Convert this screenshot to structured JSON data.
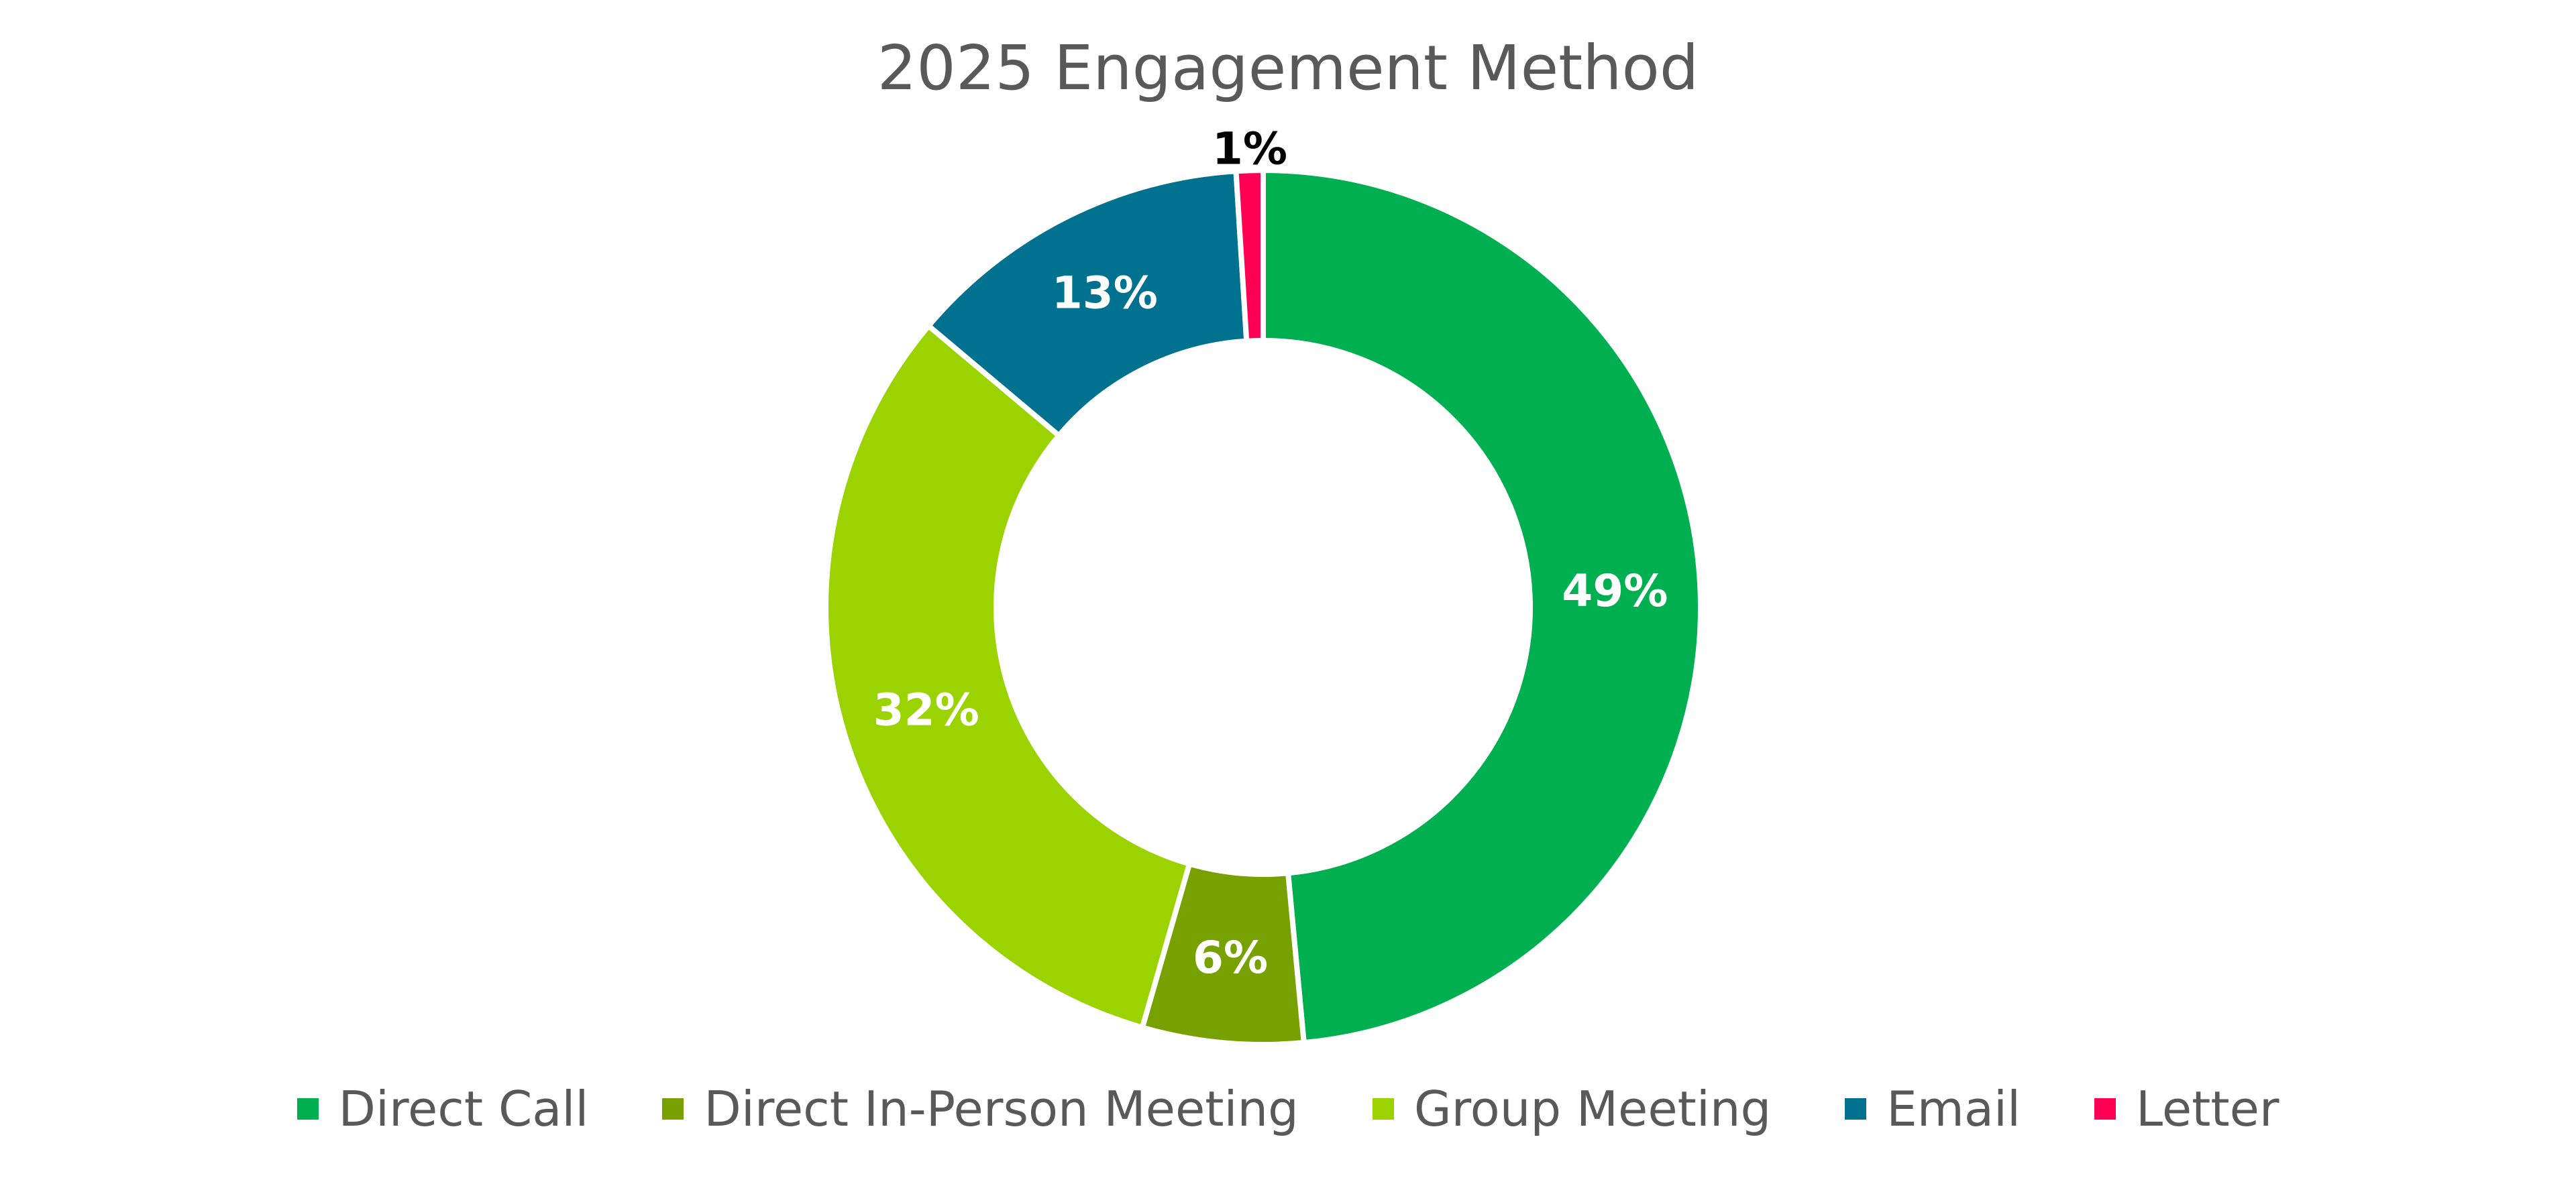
{
  "chart_data": {
    "type": "pie",
    "subtype": "donut",
    "title": "2025 Engagement Method",
    "categories": [
      "Direct Call",
      "Direct In-Person Meeting",
      "Group Meeting",
      "Email",
      "Letter"
    ],
    "values": [
      49,
      6,
      32,
      13,
      1
    ],
    "labels": [
      "49%",
      "6%",
      "32%",
      "13%",
      "1%"
    ],
    "colors": [
      "#00B050",
      "#76A100",
      "#9AD300",
      "#00728F",
      "#FF0055"
    ],
    "label_colors": [
      "#FFFFFF",
      "#FFFFFF",
      "#FFFFFF",
      "#FFFFFF",
      "#000000"
    ],
    "legend_position": "bottom"
  }
}
